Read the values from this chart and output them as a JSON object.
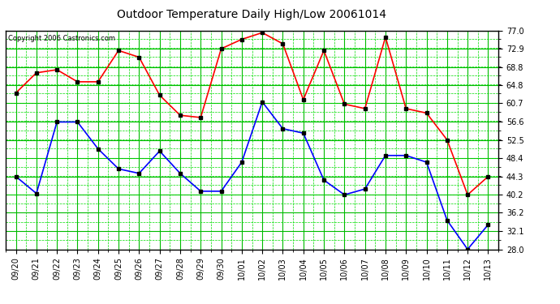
{
  "title": "Outdoor Temperature Daily High/Low 20061014",
  "copyright": "Copyright 2006 Castronics.com",
  "labels": [
    "09/20",
    "09/21",
    "09/22",
    "09/23",
    "09/24",
    "09/25",
    "09/26",
    "09/27",
    "09/28",
    "09/29",
    "09/30",
    "10/01",
    "10/02",
    "10/03",
    "10/04",
    "10/05",
    "10/06",
    "10/07",
    "10/08",
    "10/09",
    "10/10",
    "10/11",
    "10/12",
    "10/13"
  ],
  "high": [
    63.0,
    67.5,
    68.2,
    65.5,
    65.5,
    72.5,
    71.0,
    62.5,
    58.0,
    57.5,
    72.9,
    75.0,
    76.5,
    74.0,
    61.5,
    72.5,
    60.5,
    59.5,
    75.5,
    59.5,
    58.5,
    52.5,
    40.2,
    44.3
  ],
  "low": [
    44.3,
    40.5,
    56.5,
    56.5,
    50.5,
    46.0,
    45.0,
    50.0,
    45.0,
    41.0,
    41.0,
    47.5,
    61.0,
    55.0,
    54.0,
    43.5,
    40.2,
    41.5,
    49.0,
    49.0,
    47.5,
    34.5,
    28.0,
    33.5
  ],
  "high_color": "#ff0000",
  "low_color": "#0000ff",
  "bg_color": "#ffffff",
  "plot_bg": "#ffffff",
  "grid_major_color": "#00bb00",
  "grid_minor_color": "#00dd00",
  "yticks": [
    28.0,
    32.1,
    36.2,
    40.2,
    44.3,
    48.4,
    52.5,
    56.6,
    60.7,
    64.8,
    68.8,
    72.9,
    77.0
  ],
  "ymin": 28.0,
  "ymax": 77.0,
  "marker": "s",
  "markersize": 3,
  "linewidth": 1.2,
  "title_fontsize": 10,
  "tick_fontsize": 7,
  "copyright_fontsize": 6
}
